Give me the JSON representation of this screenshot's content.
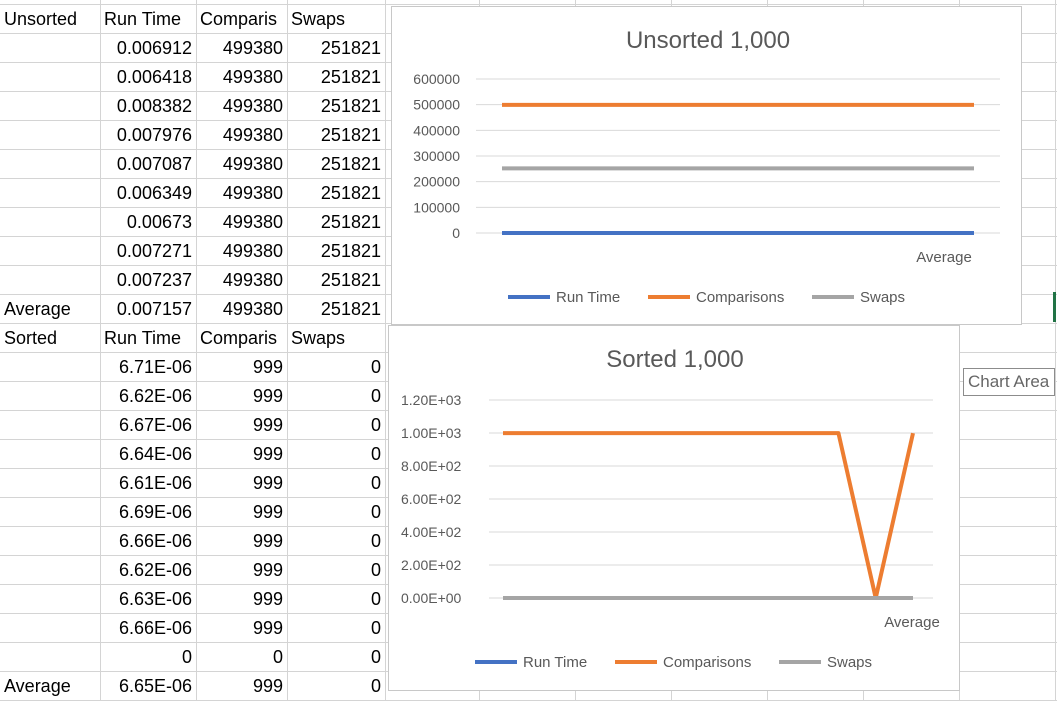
{
  "sheet": {
    "unsorted_block": {
      "label": "Unsorted",
      "headers": [
        "Run Time",
        "Comparis",
        "Swaps"
      ],
      "rows": [
        [
          "0.006912",
          "499380",
          "251821"
        ],
        [
          "0.006418",
          "499380",
          "251821"
        ],
        [
          "0.008382",
          "499380",
          "251821"
        ],
        [
          "0.007976",
          "499380",
          "251821"
        ],
        [
          "0.007087",
          "499380",
          "251821"
        ],
        [
          "0.006349",
          "499380",
          "251821"
        ],
        [
          "0.00673",
          "499380",
          "251821"
        ],
        [
          "0.007271",
          "499380",
          "251821"
        ],
        [
          "0.007237",
          "499380",
          "251821"
        ]
      ],
      "average_label": "Average",
      "average": [
        "0.007157",
        "499380",
        "251821"
      ]
    },
    "sorted_block": {
      "label": "Sorted",
      "headers": [
        "Run Time",
        "Comparis",
        "Swaps"
      ],
      "rows": [
        [
          "6.71E-06",
          "999",
          "0"
        ],
        [
          "6.62E-06",
          "999",
          "0"
        ],
        [
          "6.67E-06",
          "999",
          "0"
        ],
        [
          "6.64E-06",
          "999",
          "0"
        ],
        [
          "6.61E-06",
          "999",
          "0"
        ],
        [
          "6.69E-06",
          "999",
          "0"
        ],
        [
          "6.66E-06",
          "999",
          "0"
        ],
        [
          "6.62E-06",
          "999",
          "0"
        ],
        [
          "6.63E-06",
          "999",
          "0"
        ],
        [
          "6.66E-06",
          "999",
          "0"
        ],
        [
          "0",
          "0",
          "0"
        ]
      ],
      "average_label": "Average",
      "average": [
        "6.65E-06",
        "999",
        "0"
      ]
    }
  },
  "tooltip": {
    "text": "Chart Area"
  },
  "colors": {
    "run_time": "#4472c4",
    "comparisons": "#ed7d31",
    "swaps": "#a5a5a5",
    "gridline": "#d9d9d9",
    "axis_text": "#595959",
    "selection": "#217346"
  },
  "chart_data": [
    {
      "type": "line",
      "title": "Unsorted 1,000",
      "categories": [
        "",
        "",
        "",
        "",
        "",
        "",
        "",
        "",
        "",
        "Average"
      ],
      "series": [
        {
          "name": "Run Time",
          "values": [
            0.006912,
            0.006418,
            0.008382,
            0.007976,
            0.007087,
            0.006349,
            0.00673,
            0.007271,
            0.007237,
            0.007157
          ]
        },
        {
          "name": "Comparisons",
          "values": [
            499380,
            499380,
            499380,
            499380,
            499380,
            499380,
            499380,
            499380,
            499380,
            499380
          ]
        },
        {
          "name": "Swaps",
          "values": [
            251821,
            251821,
            251821,
            251821,
            251821,
            251821,
            251821,
            251821,
            251821,
            251821
          ]
        }
      ],
      "yticks": [
        0,
        100000,
        200000,
        300000,
        400000,
        500000,
        600000
      ],
      "ytick_labels": [
        "0",
        "100000",
        "200000",
        "300000",
        "400000",
        "500000",
        "600000"
      ],
      "ylim": [
        0,
        600000
      ],
      "grid": true,
      "legend": "bottom"
    },
    {
      "type": "line",
      "title": "Sorted 1,000",
      "categories": [
        "",
        "",
        "",
        "",
        "",
        "",
        "",
        "",
        "",
        "",
        "",
        "Average"
      ],
      "series": [
        {
          "name": "Run Time",
          "values": [
            6.71e-06,
            6.62e-06,
            6.67e-06,
            6.64e-06,
            6.61e-06,
            6.69e-06,
            6.66e-06,
            6.62e-06,
            6.63e-06,
            6.66e-06,
            0,
            6.65e-06
          ]
        },
        {
          "name": "Comparisons",
          "values": [
            999,
            999,
            999,
            999,
            999,
            999,
            999,
            999,
            999,
            999,
            0,
            999
          ]
        },
        {
          "name": "Swaps",
          "values": [
            0,
            0,
            0,
            0,
            0,
            0,
            0,
            0,
            0,
            0,
            0,
            0
          ]
        }
      ],
      "yticks": [
        0,
        200,
        400,
        600,
        800,
        1000,
        1200
      ],
      "ytick_labels": [
        "0.00E+00",
        "2.00E+02",
        "4.00E+02",
        "6.00E+02",
        "8.00E+02",
        "1.00E+03",
        "1.20E+03"
      ],
      "ylim": [
        0,
        1200
      ],
      "grid": true,
      "legend": "bottom"
    }
  ]
}
